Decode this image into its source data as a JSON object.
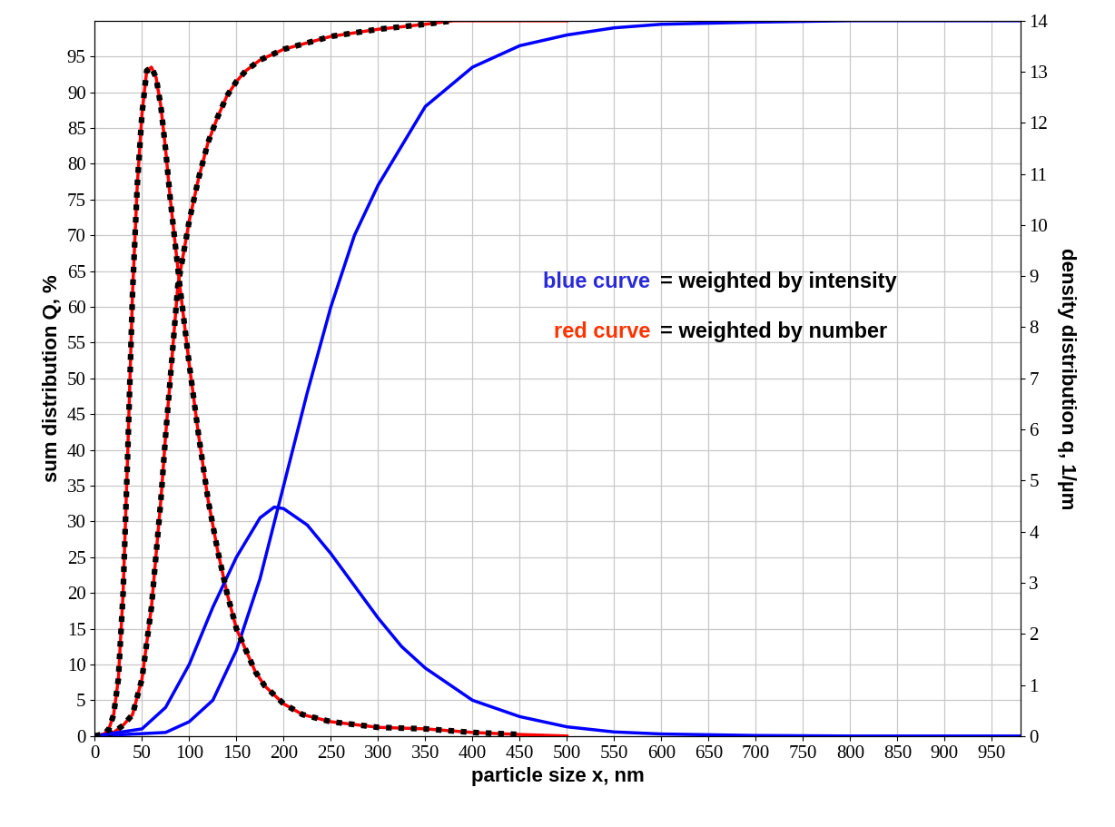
{
  "chart_data": {
    "type": "line",
    "xlabel": "particle size x, nm",
    "ylabel": "sum distribution Q, %",
    "y2label": "density distribution q, 1/µm",
    "xlim": [
      0,
      980
    ],
    "xticks": [
      0,
      50,
      100,
      150,
      200,
      250,
      300,
      350,
      400,
      450,
      500,
      550,
      600,
      650,
      700,
      750,
      800,
      850,
      900,
      950
    ],
    "ylim": [
      0,
      100
    ],
    "yticks": [
      0,
      5,
      10,
      15,
      20,
      25,
      30,
      35,
      40,
      45,
      50,
      55,
      60,
      65,
      70,
      75,
      80,
      85,
      90,
      95
    ],
    "y2lim": [
      0,
      14
    ],
    "y2ticks": [
      0,
      1,
      2,
      3,
      4,
      5,
      6,
      7,
      8,
      9,
      10,
      11,
      12,
      13,
      14
    ],
    "grid": true,
    "annotations": [
      [
        {
          "text": "blue curve",
          "color": "#2a2ad8"
        },
        {
          "text": "= weighted by intensity",
          "color": "#000000"
        }
      ],
      [
        {
          "text": "red curve",
          "color": "#ff3300"
        },
        {
          "text": "= weighted by number",
          "color": "#000000"
        }
      ]
    ],
    "series": [
      {
        "color": "#ff0000",
        "axis": "y2",
        "line_style": "solid",
        "x": [
          0,
          10,
          15,
          20,
          25,
          30,
          35,
          40,
          45,
          50,
          55,
          60,
          65,
          70,
          75,
          80,
          90,
          100,
          110,
          120,
          130,
          140,
          150,
          160,
          170,
          180,
          200,
          220,
          250,
          300,
          350,
          400,
          450,
          500
        ],
        "values": [
          0,
          0.04,
          0.14,
          0.42,
          1.12,
          2.8,
          5.6,
          8.68,
          10.78,
          12.18,
          13.02,
          13.09,
          12.88,
          12.32,
          11.48,
          10.5,
          8.82,
          7.28,
          5.88,
          4.62,
          3.64,
          2.8,
          2.1,
          1.68,
          1.26,
          0.98,
          0.63,
          0.42,
          0.28,
          0.17,
          0.14,
          0.07,
          0.03,
          0
        ]
      },
      {
        "color": "#ff0000",
        "axis": "y",
        "line_style": "solid",
        "x": [
          0,
          20,
          30,
          40,
          50,
          60,
          70,
          75,
          80,
          88,
          100,
          110,
          120,
          130,
          140,
          150,
          160,
          175,
          200,
          250,
          300,
          350,
          380,
          500
        ],
        "values": [
          0,
          0.5,
          1.5,
          3,
          8,
          18,
          33,
          42,
          50,
          63,
          72,
          78,
          83,
          86.5,
          89.5,
          91.5,
          93,
          94.5,
          96,
          97.8,
          98.8,
          99.5,
          100,
          100
        ]
      },
      {
        "color": "#0000ff",
        "axis": "y2",
        "line_style": "solid",
        "x": [
          0,
          50,
          75,
          100,
          125,
          150,
          175,
          190,
          200,
          225,
          250,
          275,
          300,
          325,
          350,
          400,
          450,
          500,
          550,
          600,
          700,
          800,
          980
        ],
        "values": [
          0,
          0.14,
          0.56,
          1.4,
          2.52,
          3.5,
          4.27,
          4.48,
          4.45,
          4.13,
          3.57,
          2.94,
          2.31,
          1.75,
          1.33,
          0.7,
          0.38,
          0.18,
          0.08,
          0.04,
          0.01,
          0,
          0
        ]
      },
      {
        "color": "#0000ff",
        "axis": "y",
        "line_style": "solid",
        "x": [
          0,
          75,
          100,
          125,
          150,
          175,
          200,
          225,
          250,
          275,
          300,
          350,
          400,
          450,
          500,
          550,
          600,
          700,
          800,
          980
        ],
        "values": [
          0,
          0.5,
          2,
          5,
          12,
          22,
          35,
          48,
          60,
          70,
          77,
          88,
          93.5,
          96.5,
          98,
          99,
          99.5,
          99.8,
          100,
          100
        ]
      },
      {
        "color": "#000000",
        "axis": "y2",
        "line_style": "dotted",
        "x": [
          0,
          10,
          15,
          20,
          25,
          30,
          35,
          40,
          45,
          50,
          55,
          60,
          65,
          70,
          75,
          80,
          90,
          100,
          110,
          120,
          130,
          140,
          150,
          160,
          170,
          180,
          200,
          220,
          250,
          300,
          350,
          400,
          450
        ],
        "values": [
          0,
          0.04,
          0.14,
          0.42,
          1.12,
          2.8,
          5.6,
          8.68,
          10.78,
          12.18,
          13.02,
          13.09,
          12.88,
          12.32,
          11.48,
          10.5,
          8.82,
          7.28,
          5.88,
          4.62,
          3.64,
          2.8,
          2.1,
          1.68,
          1.26,
          0.98,
          0.63,
          0.42,
          0.28,
          0.17,
          0.14,
          0.07,
          0.03
        ]
      },
      {
        "color": "#000000",
        "axis": "y",
        "line_style": "dotted",
        "x": [
          0,
          20,
          30,
          40,
          50,
          60,
          70,
          75,
          80,
          88,
          100,
          110,
          120,
          130,
          140,
          150,
          160,
          175,
          200,
          250,
          300,
          350,
          380
        ],
        "values": [
          0,
          0.5,
          1.5,
          3,
          8,
          18,
          33,
          42,
          50,
          63,
          72,
          78,
          83,
          86.5,
          89.5,
          91.5,
          93,
          94.5,
          96,
          97.8,
          98.8,
          99.5,
          100
        ]
      }
    ]
  }
}
